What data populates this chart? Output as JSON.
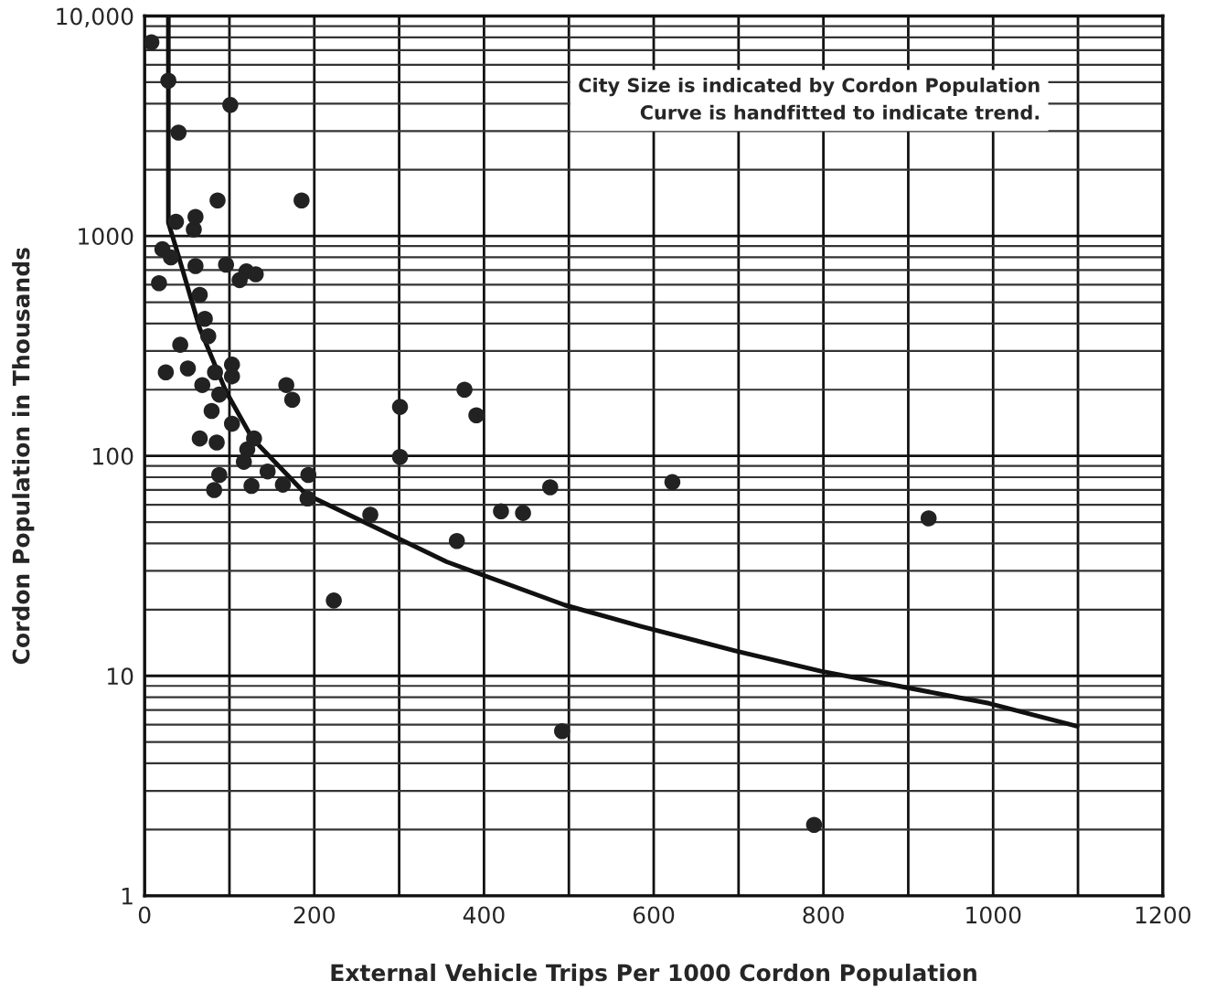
{
  "chart_data": {
    "type": "scatter",
    "xlabel": "External Vehicle Trips Per 1000 Cordon Population",
    "ylabel": "Cordon Population in Thousands",
    "annotations": [
      "City Size is indicated by Cordon Population",
      "Curve is handfitted to indicate trend."
    ],
    "log": "y",
    "grid": true,
    "marker": "circle",
    "xlim": [
      0,
      1200
    ],
    "ylim": [
      1,
      10000
    ],
    "xticks": [
      0,
      {
        "value": 100,
        "label": null
      },
      200,
      {
        "value": 300,
        "label": null
      },
      400,
      {
        "value": 500,
        "label": null
      },
      600,
      {
        "value": 700,
        "label": null
      },
      800,
      {
        "value": 900,
        "label": null
      },
      1000,
      {
        "value": 1100,
        "label": null
      },
      1200
    ],
    "yticks": [
      1,
      10,
      100,
      1000,
      {
        "value": 10000,
        "label": "10,000"
      }
    ],
    "series": [
      {
        "color": "#222222",
        "x": [
          8,
          28,
          40,
          101,
          86,
          185,
          37,
          60,
          58,
          21,
          31,
          17,
          60,
          96,
          112,
          120,
          131,
          65,
          71,
          75,
          42,
          25,
          51,
          68,
          103,
          103,
          83,
          88,
          167,
          174,
          79,
          103,
          65,
          85,
          129,
          121,
          117,
          145,
          88,
          82,
          126,
          163,
          193,
          192,
          266,
          301,
          301,
          377,
          391,
          223,
          368,
          420,
          446,
          478,
          622,
          924,
          789,
          492
        ],
        "values": [
          7600,
          5080,
          2950,
          3940,
          1450,
          1450,
          1160,
          1220,
          1070,
          870,
          800,
          610,
          730,
          740,
          630,
          690,
          670,
          540,
          420,
          350,
          320,
          240,
          250,
          210,
          260,
          230,
          240,
          190,
          210,
          180,
          160,
          140,
          120,
          115,
          120,
          107,
          94,
          85,
          82,
          70,
          73,
          74,
          82,
          64,
          54,
          167,
          99,
          200,
          153,
          22,
          41,
          56,
          55,
          72,
          76,
          52,
          2.1,
          5.6
        ]
      },
      {
        "type": "line",
        "color": "#111111",
        "line_style": "solid",
        "marker": "none",
        "x": [
          28,
          28,
          40,
          65,
          96,
          127,
          190,
          294,
          356,
          495,
          585,
          696,
          797,
          995,
          1099
        ],
        "values": [
          10000,
          1150,
          810,
          380,
          196,
          120,
          67,
          43,
          33,
          21,
          16.8,
          13,
          10.5,
          7.5,
          5.9
        ]
      }
    ]
  }
}
